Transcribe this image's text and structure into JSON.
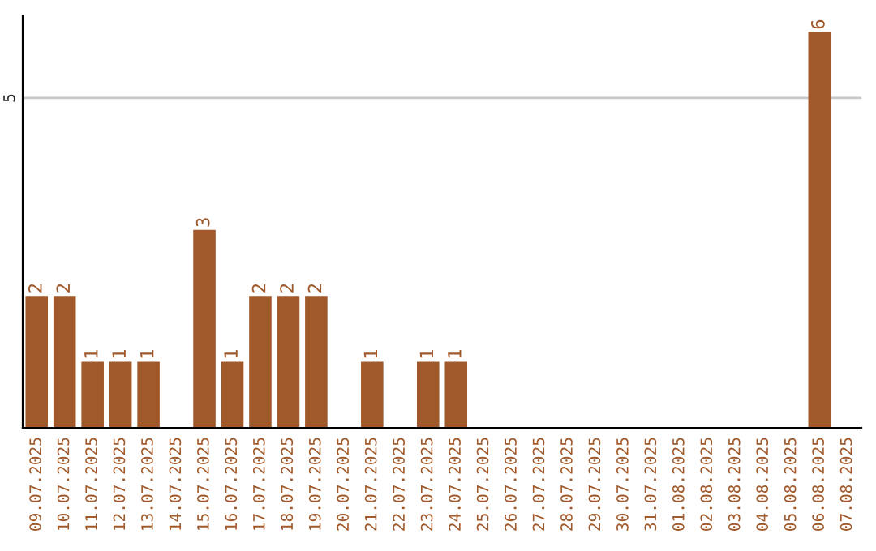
{
  "chart_data": {
    "type": "bar",
    "categories": [
      "09.07.2025",
      "10.07.2025",
      "11.07.2025",
      "12.07.2025",
      "13.07.2025",
      "14.07.2025",
      "15.07.2025",
      "16.07.2025",
      "17.07.2025",
      "18.07.2025",
      "19.07.2025",
      "20.07.2025",
      "21.07.2025",
      "22.07.2025",
      "23.07.2025",
      "24.07.2025",
      "25.07.2025",
      "26.07.2025",
      "27.07.2025",
      "28.07.2025",
      "29.07.2025",
      "30.07.2025",
      "31.07.2025",
      "01.08.2025",
      "02.08.2025",
      "03.08.2025",
      "04.08.2025",
      "05.08.2025",
      "06.08.2025",
      "07.08.2025"
    ],
    "values": [
      2,
      2,
      1,
      1,
      1,
      0,
      3,
      1,
      2,
      2,
      2,
      0,
      1,
      0,
      1,
      1,
      0,
      0,
      0,
      0,
      0,
      0,
      0,
      0,
      0,
      0,
      0,
      0,
      6,
      0
    ],
    "value_labels": [
      "2",
      "2",
      "1",
      "1",
      "1",
      null,
      "3",
      "1",
      "2",
      "2",
      "2",
      null,
      "1",
      null,
      "1",
      "1",
      null,
      null,
      null,
      null,
      null,
      null,
      null,
      null,
      null,
      null,
      null,
      null,
      "6",
      null
    ],
    "color": "#a0592a",
    "ylim": [
      0,
      6.24
    ],
    "yticks": [
      5
    ],
    "grid": "y"
  }
}
